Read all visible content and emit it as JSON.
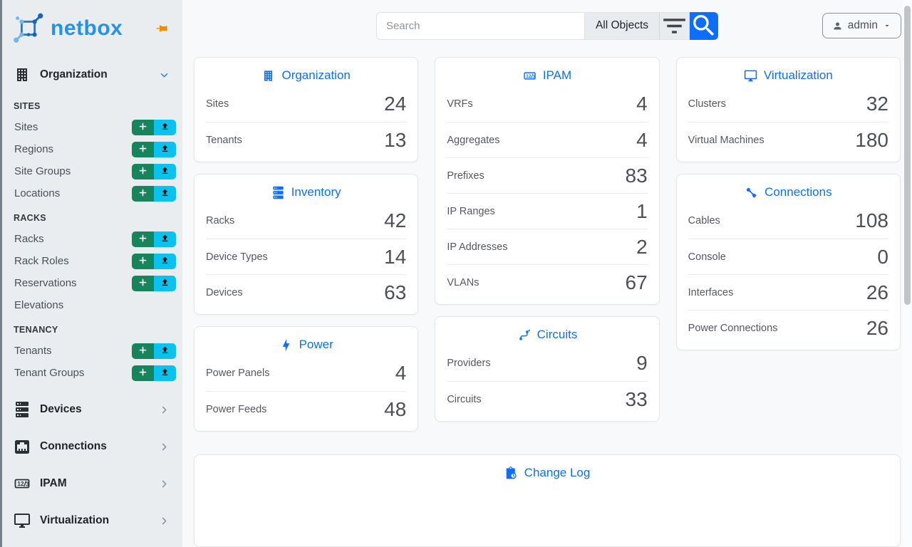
{
  "brand": {
    "name": "netbox",
    "pin_icon": "pin-icon"
  },
  "topbar": {
    "search": {
      "placeholder": "Search",
      "scope_button": "All Objects"
    },
    "user": {
      "label": "admin"
    }
  },
  "sidebar": {
    "groups": [
      {
        "type": "menu",
        "label": "Organization",
        "icon": "building-icon",
        "state": "expanded"
      },
      {
        "type": "section",
        "title": "SITES",
        "items": [
          {
            "label": "Sites",
            "buttons": true
          },
          {
            "label": "Regions",
            "buttons": true
          },
          {
            "label": "Site Groups",
            "buttons": true
          },
          {
            "label": "Locations",
            "buttons": true
          }
        ]
      },
      {
        "type": "section",
        "title": "RACKS",
        "items": [
          {
            "label": "Racks",
            "buttons": true
          },
          {
            "label": "Rack Roles",
            "buttons": true
          },
          {
            "label": "Reservations",
            "buttons": true
          },
          {
            "label": "Elevations",
            "buttons": false
          }
        ]
      },
      {
        "type": "section",
        "title": "TENANCY",
        "items": [
          {
            "label": "Tenants",
            "buttons": true
          },
          {
            "label": "Tenant Groups",
            "buttons": true
          }
        ]
      },
      {
        "type": "menu",
        "label": "Devices",
        "icon": "server-icon",
        "state": "collapsed"
      },
      {
        "type": "menu",
        "label": "Connections",
        "icon": "ethernet-icon",
        "state": "collapsed"
      },
      {
        "type": "menu",
        "label": "IPAM",
        "icon": "counter-icon",
        "state": "collapsed"
      },
      {
        "type": "menu",
        "label": "Virtualization",
        "icon": "monitor-icon",
        "state": "collapsed"
      }
    ]
  },
  "cards": {
    "columns": [
      [
        {
          "id": "organization",
          "title": "Organization",
          "icon": "building-icon",
          "rows": [
            {
              "label": "Sites",
              "value": "24"
            },
            {
              "label": "Tenants",
              "value": "13"
            }
          ]
        },
        {
          "id": "inventory",
          "title": "Inventory",
          "icon": "server-icon",
          "rows": [
            {
              "label": "Racks",
              "value": "42"
            },
            {
              "label": "Device Types",
              "value": "14"
            },
            {
              "label": "Devices",
              "value": "63"
            }
          ]
        },
        {
          "id": "power",
          "title": "Power",
          "icon": "lightning-icon",
          "rows": [
            {
              "label": "Power Panels",
              "value": "4"
            },
            {
              "label": "Power Feeds",
              "value": "48"
            }
          ]
        }
      ],
      [
        {
          "id": "ipam",
          "title": "IPAM",
          "icon": "counter-icon",
          "rows": [
            {
              "label": "VRFs",
              "value": "4"
            },
            {
              "label": "Aggregates",
              "value": "4"
            },
            {
              "label": "Prefixes",
              "value": "83"
            },
            {
              "label": "IP Ranges",
              "value": "1"
            },
            {
              "label": "IP Addresses",
              "value": "2"
            },
            {
              "label": "VLANs",
              "value": "67"
            }
          ]
        },
        {
          "id": "circuits",
          "title": "Circuits",
          "icon": "transit-icon",
          "rows": [
            {
              "label": "Providers",
              "value": "9"
            },
            {
              "label": "Circuits",
              "value": "33"
            }
          ]
        }
      ],
      [
        {
          "id": "virtualization",
          "title": "Virtualization",
          "icon": "monitor-icon",
          "rows": [
            {
              "label": "Clusters",
              "value": "32"
            },
            {
              "label": "Virtual Machines",
              "value": "180"
            }
          ]
        },
        {
          "id": "connections",
          "title": "Connections",
          "icon": "cable-icon",
          "rows": [
            {
              "label": "Cables",
              "value": "108"
            },
            {
              "label": "Console",
              "value": "0"
            },
            {
              "label": "Interfaces",
              "value": "26"
            },
            {
              "label": "Power Connections",
              "value": "26"
            }
          ]
        }
      ]
    ],
    "changelog": {
      "title": "Change Log",
      "icon": "clipboard-clock-icon"
    }
  },
  "colors": {
    "primary_blue": "#0d6efd",
    "brand_blue": "#2392ec",
    "add_green": "#17855c",
    "import_cyan": "#0ac2ee",
    "pin_orange": "#f08c00",
    "sidebar_bg": "#e9edf0",
    "page_bg": "#f7f9fa"
  }
}
